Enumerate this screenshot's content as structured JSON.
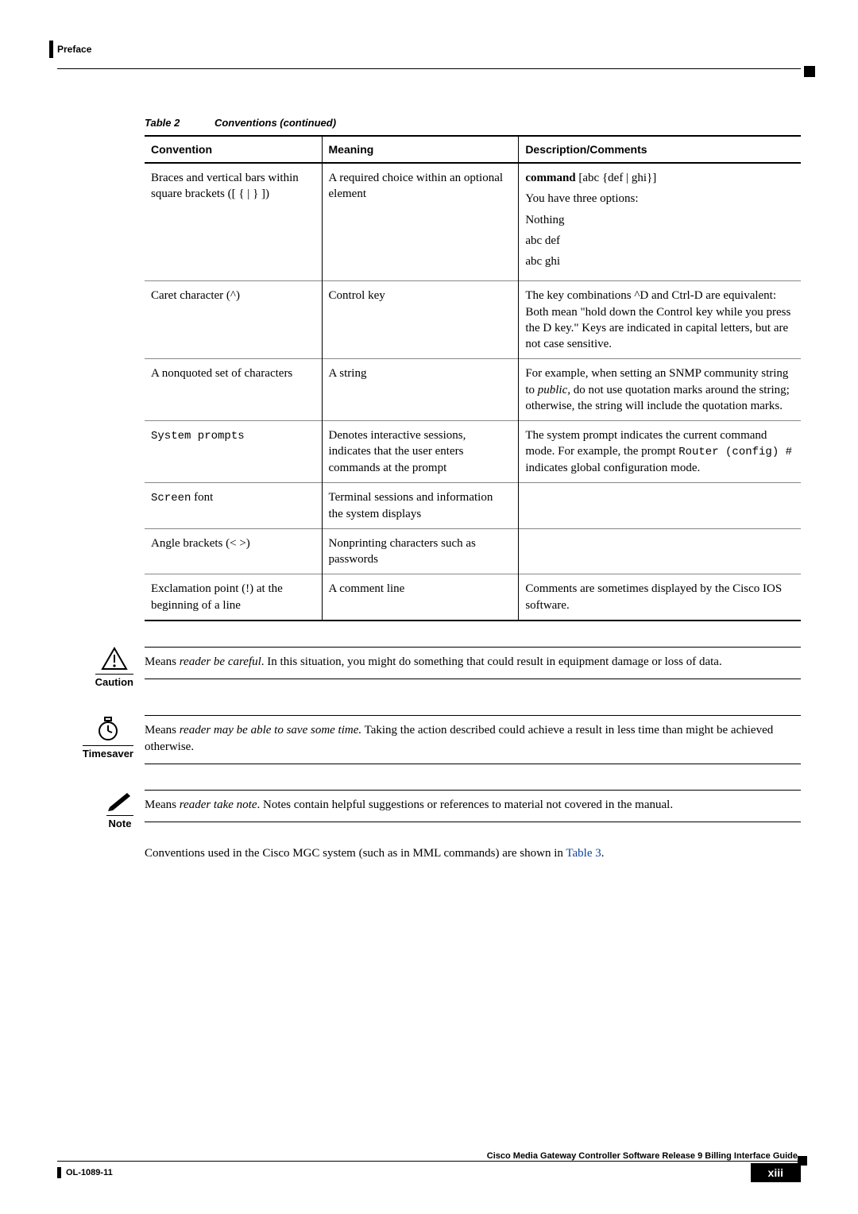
{
  "header": {
    "section": "Preface"
  },
  "table": {
    "label": "Table 2",
    "title": "Conventions (continued)",
    "columns": [
      "Convention",
      "Meaning",
      "Description/Comments"
    ],
    "col_widths": [
      "27%",
      "30%",
      "43%"
    ],
    "rows": [
      {
        "convention_html": "Braces and vertical bars within square brackets ([ { | } ])",
        "meaning": "A required choice within an optional element",
        "desc_lines": [
          "<b>command</b> [abc {def | ghi}]",
          "You have three options:",
          "Nothing",
          "abc def",
          "abc ghi"
        ]
      },
      {
        "convention_html": "Caret character (^)",
        "meaning": "Control key",
        "desc": "The key combinations ^D and Ctrl-D are equivalent: Both mean \"hold down the Control key while you press the D key.\" Keys are indicated in capital letters, but are not case sensitive."
      },
      {
        "convention_html": "A nonquoted set of characters",
        "meaning": "A string",
        "desc": "For example, when setting an SNMP community string to <i>public</i>, do not use quotation marks around the string; otherwise, the string will include the quotation marks."
      },
      {
        "convention_html": "<span class=\"mono\">System prompts</span>",
        "meaning": "Denotes interactive sessions, indicates that the user enters commands at the prompt",
        "desc": "The system prompt indicates the current command mode. For example, the prompt <span class=\"mono\">Router (config) #</span> indicates global configuration mode."
      },
      {
        "convention_html": "<span class=\"mono\">Screen</span> font",
        "meaning": "Terminal sessions and information the system displays",
        "desc": ""
      },
      {
        "convention_html": "Angle brackets (&lt; &gt;)",
        "meaning": "Nonprinting characters such as passwords",
        "desc": ""
      },
      {
        "convention_html": "Exclamation point (!) at the beginning of a line",
        "meaning": "A comment line",
        "desc": "Comments are sometimes displayed by the Cisco IOS software."
      }
    ]
  },
  "caution": {
    "label": "Caution",
    "text": "Means <i>reader be careful</i>. In this situation, you might do something that could result in equipment damage or loss of data."
  },
  "timesaver": {
    "label": "Timesaver",
    "text": "Means <i>reader may be able to save some time.</i> Taking the action described could achieve a result in less time than might be achieved otherwise."
  },
  "note": {
    "label": "Note",
    "text": "Means <i>reader take note</i>. Notes contain helpful suggestions or references to material not covered in the manual."
  },
  "after_note": {
    "text_pre": "Conventions used in the Cisco MGC system (such as in MML commands) are shown in ",
    "link": "Table 3",
    "text_post": "."
  },
  "footer": {
    "title": "Cisco Media Gateway Controller Software Release 9 Billing Interface Guide",
    "doc_id": "OL-1089-11",
    "page_num": "xiii"
  },
  "colors": {
    "link": "#0a3f9b"
  }
}
